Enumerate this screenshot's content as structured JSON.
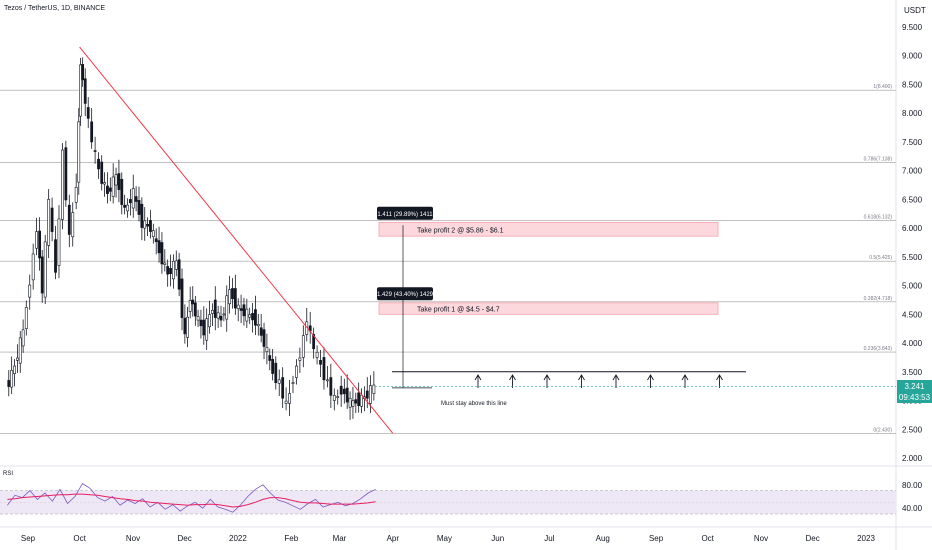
{
  "header": {
    "title": "Tezos / TetherUS, 1D, BINANCE"
  },
  "currency": "USDT",
  "current_price": {
    "value": "3.241",
    "countdown": "09:43:53",
    "color": "#26a69a"
  },
  "indicators": {
    "rsi_label": "RSI"
  },
  "colors": {
    "up": "#ffffff",
    "down": "#131722",
    "trendline": "#f23645",
    "zone_fill": "#fcd7dc",
    "zone_stroke": "#f7a1ad",
    "rsi_line": "#7e57c2",
    "rsi_ma": "#e91e63",
    "rsi_band": "#ede7f6"
  },
  "chart_data": [
    {
      "type": "candlestick",
      "title": "Tezos / TetherUS, 1D, BINANCE",
      "ylabel": "USDT",
      "ylim": [
        2.0,
        9.5
      ],
      "y_ticks": [
        "9.500",
        "9.000",
        "8.500",
        "8.000",
        "7.500",
        "7.000",
        "6.500",
        "6.000",
        "5.500",
        "5.000",
        "4.500",
        "4.000",
        "3.500",
        "3.000",
        "2.500",
        "2.000"
      ],
      "y_tick_values": [
        9.5,
        9.0,
        8.5,
        8.0,
        7.5,
        7.0,
        6.5,
        6.0,
        5.5,
        5.0,
        4.5,
        4.0,
        3.5,
        3.0,
        2.5,
        2.0
      ],
      "x_ticks": [
        "Sep",
        "Oct",
        "Nov",
        "Dec",
        "2022",
        "Feb",
        "Mar",
        "Apr",
        "May",
        "Jun",
        "Jul",
        "Aug",
        "Sep",
        "Oct",
        "Nov",
        "Dec",
        "2023"
      ],
      "x_tick_dates": [
        "2021-09-01",
        "2021-10-01",
        "2021-11-01",
        "2021-12-01",
        "2022-01-01",
        "2022-02-01",
        "2022-03-01",
        "2022-04-01",
        "2022-05-01",
        "2022-06-01",
        "2022-07-01",
        "2022-08-01",
        "2022-09-01",
        "2022-10-01",
        "2022-11-01",
        "2022-12-01",
        "2023-01-01"
      ],
      "close_series": {
        "x": [
          "2021-08-20",
          "2021-08-25",
          "2021-08-30",
          "2021-09-03",
          "2021-09-07",
          "2021-09-10",
          "2021-09-14",
          "2021-09-18",
          "2021-09-22",
          "2021-09-26",
          "2021-09-30",
          "2021-10-02",
          "2021-10-05",
          "2021-10-09",
          "2021-10-13",
          "2021-10-18",
          "2021-10-23",
          "2021-10-28",
          "2021-11-02",
          "2021-11-07",
          "2021-11-12",
          "2021-11-17",
          "2021-11-22",
          "2021-11-27",
          "2021-12-02",
          "2021-12-05",
          "2021-12-08",
          "2021-12-13",
          "2021-12-18",
          "2021-12-23",
          "2021-12-28",
          "2022-01-02",
          "2022-01-07",
          "2022-01-12",
          "2022-01-17",
          "2022-01-22",
          "2022-01-26",
          "2022-01-30",
          "2022-02-03",
          "2022-02-07",
          "2022-02-11",
          "2022-02-15",
          "2022-02-19",
          "2022-02-23",
          "2022-02-27",
          "2022-03-03",
          "2022-03-08",
          "2022-03-13",
          "2022-03-18",
          "2022-03-22"
        ],
        "y": [
          3.2,
          3.6,
          4.2,
          5.1,
          6.0,
          4.9,
          6.5,
          5.2,
          7.3,
          5.8,
          6.8,
          8.9,
          8.2,
          7.5,
          7.0,
          6.6,
          6.9,
          6.3,
          6.6,
          6.1,
          6.0,
          5.6,
          5.2,
          5.4,
          4.1,
          4.8,
          4.5,
          4.2,
          4.6,
          4.4,
          4.9,
          4.6,
          4.5,
          4.4,
          4.0,
          3.5,
          3.3,
          2.9,
          3.4,
          3.8,
          4.4,
          3.9,
          3.6,
          3.3,
          3.0,
          3.2,
          2.95,
          3.0,
          3.1,
          3.24
        ]
      },
      "levels": [
        {
          "label": "1(8.400)",
          "value": 8.4
        },
        {
          "label": "0.786(7.138)",
          "value": 7.138
        },
        {
          "label": "0.618(6.132)",
          "value": 6.132
        },
        {
          "label": "0.5(5.425)",
          "value": 5.425
        },
        {
          "label": "0.382(4.718)",
          "value": 4.718
        },
        {
          "label": "0.236(3.843)",
          "value": 3.843
        },
        {
          "label": "0(2.430)",
          "value": 2.43
        }
      ],
      "annotations": {
        "trendline": {
          "from": [
            "2021-10-01",
            9.15
          ],
          "to": [
            "2022-04-01",
            2.43
          ]
        },
        "take_profit_zones": [
          {
            "label": "Take profit 2 @ $5.86 - $6.1",
            "low": 5.86,
            "high": 6.1
          },
          {
            "label": "Take profit 1 @ $4.5 - $4.7",
            "low": 4.5,
            "high": 4.7
          }
        ],
        "measure_labels": [
          {
            "text": "1.411 (29.89%) 1411",
            "anchor": 6.25
          },
          {
            "text": "1.429 (43.40%) 1429",
            "anchor": 4.85
          }
        ],
        "support_line": {
          "value": 3.5,
          "label": "Must stay above this line",
          "arrow_count": 8
        }
      }
    },
    {
      "type": "line",
      "title": "RSI",
      "ylim": [
        30,
        95
      ],
      "y_ticks": [
        "80.00",
        "40.00"
      ],
      "y_tick_values": [
        80,
        40
      ],
      "bands": [
        70,
        30
      ],
      "series": [
        {
          "values": [
            45,
            62,
            58,
            70,
            55,
            66,
            52,
            72,
            48,
            60,
            82,
            74,
            58,
            52,
            60,
            45,
            54,
            48,
            56,
            42,
            50,
            38,
            46,
            35,
            44,
            50,
            40,
            55,
            42,
            38,
            33,
            45,
            60,
            72,
            80,
            66,
            54,
            50,
            44,
            38,
            48,
            55,
            42,
            46,
            50,
            44,
            48,
            56,
            66,
            72
          ]
        },
        {
          "values": [
            55,
            56,
            58,
            59,
            60,
            61,
            62,
            63,
            63,
            64,
            64,
            63,
            62,
            60,
            58,
            56,
            55,
            53,
            52,
            50,
            49,
            48,
            47,
            46,
            45,
            46,
            46,
            47,
            46,
            44,
            42,
            43,
            46,
            50,
            55,
            58,
            58,
            56,
            53,
            50,
            49,
            49,
            48,
            47,
            47,
            47,
            47,
            48,
            49,
            51
          ]
        }
      ]
    }
  ]
}
